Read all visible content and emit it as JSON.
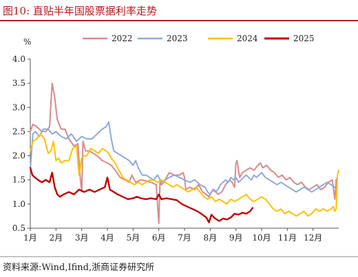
{
  "figure": {
    "title": "图10:   直贴半年国股票据利率走势",
    "source": "资料来源:Wind,Ifind,浙商证券研究所"
  },
  "colors": {
    "s2022": "#d9898c",
    "s2023": "#8ea9db",
    "s2024": "#ffc000",
    "s2025": "#c00000",
    "title": "#b5191c"
  },
  "chart_data": {
    "type": "line",
    "title": "图10:   直贴半年国股票据利率走势",
    "ylabel": "%",
    "xlabel": "",
    "ylim": [
      0.5,
      4.0
    ],
    "yticks": [
      "0.5",
      "1.0",
      "1.5",
      "2.0",
      "2.5",
      "3.0",
      "3.5",
      "4.0"
    ],
    "x_is_month": true,
    "xlim": [
      1,
      13
    ],
    "xticks": [
      "1月",
      "2月",
      "3月",
      "4月",
      "5月",
      "6月",
      "7月",
      "8月",
      "9月",
      "10月",
      "11月",
      "12月"
    ],
    "legend_position": "top",
    "grid": false,
    "series": [
      {
        "name": "2022",
        "color": "#d9898c",
        "x": [
          1.0,
          1.1,
          1.25,
          1.45,
          1.6,
          1.75,
          1.85,
          1.95,
          2.05,
          2.2,
          2.35,
          2.5,
          2.7,
          2.85,
          2.95,
          3.0,
          3.05,
          3.15,
          3.3,
          3.45,
          3.6,
          3.8,
          4.0,
          4.15,
          4.3,
          4.5,
          4.7,
          4.85,
          4.95,
          5.1,
          5.3,
          5.5,
          5.7,
          5.9,
          6.0,
          6.05,
          6.1,
          6.2,
          6.4,
          6.6,
          6.8,
          6.95,
          7.0,
          7.05,
          7.2,
          7.4,
          7.55,
          7.7,
          7.85,
          7.95,
          8.05,
          8.15,
          8.3,
          8.45,
          8.6,
          8.75,
          8.85,
          8.95,
          9.0,
          9.05,
          9.1,
          9.15,
          9.25,
          9.4,
          9.55,
          9.7,
          9.85,
          9.95,
          10.05,
          10.2,
          10.35,
          10.5,
          10.65,
          10.8,
          10.95,
          11.1,
          11.25,
          11.4,
          11.55,
          11.7,
          11.85,
          12.0,
          12.15,
          12.3,
          12.45,
          12.6,
          12.75,
          12.85,
          12.9,
          12.95
        ],
        "y": [
          2.5,
          2.65,
          2.6,
          2.5,
          2.5,
          2.6,
          3.5,
          3.2,
          2.75,
          2.55,
          2.55,
          2.35,
          2.2,
          2.25,
          1.5,
          1.25,
          2.3,
          2.1,
          2.1,
          2.05,
          2.0,
          1.9,
          1.85,
          1.8,
          1.7,
          1.55,
          1.5,
          1.45,
          1.6,
          1.45,
          1.5,
          1.48,
          1.45,
          1.4,
          0.6,
          1.5,
          1.4,
          1.45,
          1.65,
          1.6,
          1.6,
          1.65,
          1.55,
          1.3,
          1.35,
          1.3,
          1.4,
          1.25,
          1.2,
          1.15,
          1.25,
          1.3,
          1.2,
          1.25,
          1.4,
          1.5,
          1.45,
          1.35,
          1.85,
          1.9,
          1.7,
          1.55,
          1.65,
          1.7,
          1.75,
          1.7,
          1.8,
          1.85,
          1.75,
          1.8,
          1.7,
          1.65,
          1.55,
          1.6,
          1.5,
          1.55,
          1.45,
          1.4,
          1.45,
          1.35,
          1.3,
          1.35,
          1.4,
          1.3,
          1.35,
          1.45,
          1.5,
          1.1,
          1.5,
          1.55
        ]
      },
      {
        "name": "2023",
        "color": "#8ea9db",
        "x": [
          1.0,
          1.1,
          1.2,
          1.35,
          1.5,
          1.7,
          1.85,
          2.0,
          2.2,
          2.4,
          2.6,
          2.8,
          3.0,
          3.2,
          3.4,
          3.6,
          3.8,
          3.95,
          4.05,
          4.15,
          4.25,
          4.4,
          4.55,
          4.7,
          4.85,
          5.0,
          5.1,
          5.2,
          5.35,
          5.5,
          5.65,
          5.8,
          5.95,
          6.1,
          6.25,
          6.4,
          6.6,
          6.8,
          7.0,
          7.2,
          7.4,
          7.6,
          7.8,
          7.9,
          8.0,
          8.1,
          8.2,
          8.3,
          8.4,
          8.5,
          8.6,
          8.7,
          8.8,
          8.9,
          9.0,
          9.1,
          9.2,
          9.3,
          9.4,
          9.5,
          9.6,
          9.7,
          9.8,
          9.9,
          10.0,
          10.15,
          10.3,
          10.45,
          10.6,
          10.75,
          10.9,
          11.05,
          11.2,
          11.35,
          11.5,
          11.65,
          11.8,
          11.95,
          12.1,
          12.25,
          12.4,
          12.55,
          12.7,
          12.85
        ],
        "y": [
          1.7,
          2.45,
          2.5,
          2.4,
          2.55,
          2.55,
          2.45,
          2.5,
          2.4,
          2.35,
          2.45,
          2.3,
          2.4,
          2.35,
          2.35,
          2.45,
          2.55,
          2.6,
          2.7,
          2.35,
          2.1,
          2.05,
          2.0,
          1.95,
          1.9,
          1.8,
          1.9,
          1.75,
          1.6,
          1.6,
          1.55,
          1.5,
          1.6,
          1.45,
          1.5,
          1.55,
          1.6,
          1.55,
          1.5,
          1.45,
          1.5,
          1.4,
          1.35,
          1.25,
          1.2,
          1.3,
          1.25,
          1.3,
          1.4,
          1.45,
          1.5,
          1.45,
          1.55,
          1.5,
          1.55,
          1.45,
          1.5,
          1.55,
          1.6,
          1.55,
          1.5,
          1.6,
          1.55,
          1.6,
          1.65,
          1.55,
          1.5,
          1.45,
          1.4,
          1.45,
          1.4,
          1.35,
          1.3,
          1.25,
          1.3,
          1.35,
          1.3,
          1.25,
          1.3,
          1.35,
          1.4,
          1.45,
          1.4,
          1.35
        ]
      },
      {
        "name": "2024",
        "color": "#ffc000",
        "x": [
          1.0,
          1.1,
          1.25,
          1.4,
          1.55,
          1.7,
          1.8,
          1.9,
          2.0,
          2.1,
          2.2,
          2.35,
          2.5,
          2.65,
          2.8,
          2.9,
          3.0,
          3.1,
          3.2,
          3.35,
          3.5,
          3.65,
          3.8,
          3.95,
          4.05,
          4.15,
          4.3,
          4.45,
          4.6,
          4.75,
          4.9,
          5.05,
          5.2,
          5.35,
          5.5,
          5.65,
          5.8,
          5.95,
          6.1,
          6.25,
          6.4,
          6.55,
          6.7,
          6.85,
          7.0,
          7.15,
          7.3,
          7.45,
          7.6,
          7.75,
          7.9,
          8.05,
          8.2,
          8.35,
          8.5,
          8.65,
          8.8,
          8.95,
          9.1,
          9.25,
          9.4,
          9.55,
          9.7,
          9.85,
          10.0,
          10.15,
          10.3,
          10.45,
          10.6,
          10.75,
          10.9,
          11.05,
          11.2,
          11.35,
          11.5,
          11.65,
          11.8,
          11.95,
          12.1,
          12.25,
          12.4,
          12.55,
          12.7,
          12.8,
          12.85,
          12.9,
          12.95,
          13.0
        ],
        "y": [
          2.1,
          2.3,
          2.35,
          2.45,
          2.35,
          2.05,
          2.1,
          2.3,
          1.9,
          1.95,
          1.85,
          1.9,
          1.9,
          2.15,
          2.2,
          1.6,
          1.95,
          2.0,
          2.0,
          2.15,
          2.1,
          2.05,
          2.15,
          2.1,
          2.05,
          1.95,
          1.85,
          1.7,
          1.55,
          1.5,
          1.45,
          1.4,
          1.45,
          1.4,
          1.45,
          1.5,
          1.5,
          1.45,
          1.5,
          1.45,
          1.4,
          1.35,
          1.4,
          1.35,
          1.3,
          1.25,
          1.3,
          1.35,
          1.25,
          1.15,
          1.1,
          1.15,
          1.05,
          1.1,
          1.05,
          1.0,
          1.1,
          1.05,
          1.1,
          1.15,
          1.2,
          1.1,
          1.05,
          1.1,
          1.15,
          1.1,
          1.0,
          0.9,
          0.85,
          0.9,
          0.8,
          0.85,
          0.8,
          0.75,
          0.8,
          0.85,
          0.75,
          0.8,
          0.9,
          0.85,
          0.9,
          0.85,
          0.9,
          0.95,
          0.85,
          0.9,
          1.6,
          1.7
        ]
      },
      {
        "name": "2025",
        "color": "#c00000",
        "x": [
          1.0,
          1.08,
          1.18,
          1.3,
          1.45,
          1.6,
          1.75,
          1.85,
          1.95,
          2.05,
          2.15,
          2.3,
          2.5,
          2.7,
          2.9,
          3.1,
          3.3,
          3.5,
          3.7,
          3.9,
          4.0,
          4.1,
          4.25,
          4.4,
          4.6,
          4.8,
          5.0,
          5.15,
          5.3,
          5.5,
          5.7,
          5.9,
          6.0,
          6.1,
          6.3,
          6.5,
          6.7,
          6.9,
          7.1,
          7.3,
          7.5,
          7.7,
          7.85,
          7.95,
          8.05,
          8.15,
          8.25,
          8.35,
          8.5,
          8.65,
          8.8,
          8.95,
          9.1,
          9.25,
          9.4,
          9.55,
          9.65
        ],
        "y": [
          1.75,
          1.6,
          1.55,
          1.5,
          1.45,
          1.5,
          1.45,
          1.65,
          1.35,
          1.2,
          1.15,
          1.2,
          1.25,
          1.2,
          1.3,
          1.25,
          1.3,
          1.25,
          1.3,
          1.35,
          1.55,
          1.3,
          1.25,
          1.2,
          1.15,
          1.1,
          1.12,
          1.15,
          1.12,
          1.1,
          1.12,
          1.1,
          1.2,
          1.1,
          1.12,
          1.1,
          1.08,
          1.0,
          0.95,
          0.9,
          0.85,
          0.78,
          0.72,
          0.62,
          0.78,
          0.72,
          0.68,
          0.65,
          0.7,
          0.68,
          0.72,
          0.8,
          0.78,
          0.82,
          0.8,
          0.85,
          0.92
        ]
      }
    ]
  }
}
